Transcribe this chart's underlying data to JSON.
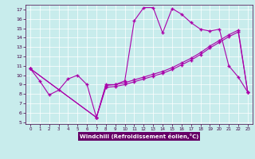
{
  "xlabel": "Windchill (Refroidissement éolien,°C)",
  "bg_color": "#c8ecec",
  "line_color": "#aa00aa",
  "label_bg": "#660066",
  "xlim": [
    -0.5,
    23.5
  ],
  "ylim": [
    4.8,
    17.5
  ],
  "yticks": [
    5,
    6,
    7,
    8,
    9,
    10,
    11,
    12,
    13,
    14,
    15,
    16,
    17
  ],
  "xticks": [
    0,
    1,
    2,
    3,
    4,
    5,
    6,
    7,
    8,
    9,
    10,
    11,
    12,
    13,
    14,
    15,
    16,
    17,
    18,
    19,
    20,
    21,
    22,
    23
  ],
  "line1_x": [
    0,
    1,
    2,
    3,
    4,
    5,
    6,
    7,
    8,
    9,
    10,
    11,
    12,
    13,
    14,
    15,
    16,
    17,
    18,
    19,
    20,
    21,
    22,
    23
  ],
  "line1_y": [
    10.7,
    9.4,
    7.9,
    8.4,
    9.6,
    10.0,
    9.0,
    5.5,
    9.0,
    9.0,
    9.4,
    15.8,
    17.2,
    17.2,
    14.5,
    17.1,
    16.5,
    15.6,
    14.9,
    14.7,
    14.9,
    11.0,
    9.8,
    8.2
  ],
  "line2_x": [
    0,
    7,
    8,
    9,
    10,
    11,
    12,
    13,
    14,
    15,
    16,
    17,
    18,
    19,
    20,
    21,
    22,
    23
  ],
  "line2_y": [
    10.7,
    5.5,
    8.9,
    9.0,
    9.2,
    9.5,
    9.8,
    10.1,
    10.4,
    10.8,
    11.3,
    11.8,
    12.4,
    13.1,
    13.7,
    14.3,
    14.8,
    8.2
  ],
  "line3_x": [
    0,
    7,
    8,
    9,
    10,
    11,
    12,
    13,
    14,
    15,
    16,
    17,
    18,
    19,
    20,
    21,
    22,
    23
  ],
  "line3_y": [
    10.7,
    5.5,
    8.7,
    8.8,
    9.0,
    9.3,
    9.6,
    9.9,
    10.2,
    10.6,
    11.1,
    11.6,
    12.2,
    12.9,
    13.5,
    14.1,
    14.6,
    8.2
  ]
}
